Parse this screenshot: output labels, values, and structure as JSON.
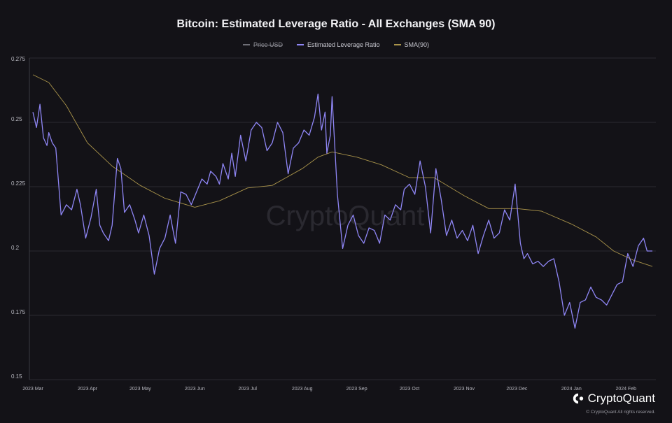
{
  "chart_data": {
    "type": "line",
    "title": "Bitcoin: Estimated Leverage Ratio - All Exchanges (SMA 90)",
    "legend": [
      {
        "name": "Price USD",
        "color": "#6e6e76",
        "hidden": true
      },
      {
        "name": "Estimated Leverage Ratio",
        "color": "#8f86f5"
      },
      {
        "name": "SMA(90)",
        "color": "#a9934a"
      }
    ],
    "legend_position": "top-center",
    "ylim": [
      0.15,
      0.275
    ],
    "y_ticks": [
      "0.275",
      "0.25",
      "0.225",
      "0.2",
      "0.175",
      "0.15"
    ],
    "x_ticks": [
      "2023 Mar",
      "2023 Apr",
      "2023 May",
      "2023 Jun",
      "2023 Jul",
      "2023 Aug",
      "2023 Sep",
      "2023 Oct",
      "2023 Nov",
      "2023 Dec",
      "2024 Jan",
      "2024 Feb"
    ],
    "grid": "horizontal",
    "series": [
      {
        "name": "Estimated Leverage Ratio",
        "color": "#8f86f5",
        "x": [
          "2023-03-01",
          "2023-03-03",
          "2023-03-05",
          "2023-03-07",
          "2023-03-09",
          "2023-03-10",
          "2023-03-12",
          "2023-03-14",
          "2023-03-17",
          "2023-03-20",
          "2023-03-23",
          "2023-03-26",
          "2023-03-28",
          "2023-03-31",
          "2023-04-03",
          "2023-04-06",
          "2023-04-08",
          "2023-04-10",
          "2023-04-13",
          "2023-04-15",
          "2023-04-18",
          "2023-04-20",
          "2023-04-22",
          "2023-04-25",
          "2023-04-28",
          "2023-04-30",
          "2023-05-03",
          "2023-05-06",
          "2023-05-09",
          "2023-05-12",
          "2023-05-15",
          "2023-05-18",
          "2023-05-21",
          "2023-05-24",
          "2023-05-27",
          "2023-05-30",
          "2023-06-02",
          "2023-06-05",
          "2023-06-08",
          "2023-06-10",
          "2023-06-13",
          "2023-06-15",
          "2023-06-17",
          "2023-06-20",
          "2023-06-22",
          "2023-06-24",
          "2023-06-27",
          "2023-06-30",
          "2023-07-03",
          "2023-07-06",
          "2023-07-09",
          "2023-07-12",
          "2023-07-15",
          "2023-07-18",
          "2023-07-21",
          "2023-07-24",
          "2023-07-27",
          "2023-07-30",
          "2023-08-02",
          "2023-08-05",
          "2023-08-08",
          "2023-08-10",
          "2023-08-12",
          "2023-08-14",
          "2023-08-15",
          "2023-08-17",
          "2023-08-18",
          "2023-08-21",
          "2023-08-24",
          "2023-08-27",
          "2023-08-30",
          "2023-09-02",
          "2023-09-05",
          "2023-09-08",
          "2023-09-11",
          "2023-09-14",
          "2023-09-17",
          "2023-09-20",
          "2023-09-23",
          "2023-09-26",
          "2023-09-28",
          "2023-10-01",
          "2023-10-04",
          "2023-10-07",
          "2023-10-10",
          "2023-10-13",
          "2023-10-16",
          "2023-10-19",
          "2023-10-22",
          "2023-10-25",
          "2023-10-28",
          "2023-10-31",
          "2023-11-03",
          "2023-11-06",
          "2023-11-09",
          "2023-11-12",
          "2023-11-15",
          "2023-11-18",
          "2023-11-21",
          "2023-11-24",
          "2023-11-27",
          "2023-11-30",
          "2023-12-03",
          "2023-12-05",
          "2023-12-07",
          "2023-12-10",
          "2023-12-13",
          "2023-12-16",
          "2023-12-19",
          "2023-12-22",
          "2023-12-25",
          "2023-12-28",
          "2023-12-31",
          "2024-01-03",
          "2024-01-06",
          "2024-01-09",
          "2024-01-12",
          "2024-01-15",
          "2024-01-18",
          "2024-01-21",
          "2024-01-24",
          "2024-01-27",
          "2024-01-30",
          "2024-02-02",
          "2024-02-05",
          "2024-02-08",
          "2024-02-11",
          "2024-02-13",
          "2024-02-15",
          "2024-02-16"
        ],
        "values": [
          0.254,
          0.248,
          0.257,
          0.244,
          0.241,
          0.246,
          0.242,
          0.24,
          0.214,
          0.218,
          0.216,
          0.224,
          0.218,
          0.205,
          0.213,
          0.224,
          0.21,
          0.207,
          0.204,
          0.21,
          0.236,
          0.232,
          0.215,
          0.218,
          0.212,
          0.207,
          0.214,
          0.206,
          0.191,
          0.201,
          0.205,
          0.214,
          0.203,
          0.223,
          0.222,
          0.218,
          0.223,
          0.228,
          0.226,
          0.231,
          0.229,
          0.226,
          0.234,
          0.228,
          0.238,
          0.229,
          0.245,
          0.235,
          0.247,
          0.25,
          0.248,
          0.239,
          0.242,
          0.25,
          0.246,
          0.23,
          0.24,
          0.242,
          0.247,
          0.245,
          0.252,
          0.261,
          0.247,
          0.254,
          0.238,
          0.245,
          0.26,
          0.222,
          0.201,
          0.21,
          0.214,
          0.206,
          0.203,
          0.209,
          0.208,
          0.203,
          0.214,
          0.212,
          0.218,
          0.216,
          0.224,
          0.226,
          0.222,
          0.235,
          0.225,
          0.207,
          0.232,
          0.22,
          0.206,
          0.212,
          0.205,
          0.208,
          0.204,
          0.21,
          0.199,
          0.206,
          0.212,
          0.205,
          0.207,
          0.216,
          0.212,
          0.226,
          0.203,
          0.197,
          0.199,
          0.195,
          0.196,
          0.194,
          0.196,
          0.197,
          0.188,
          0.175,
          0.18,
          0.17,
          0.18,
          0.181,
          0.186,
          0.182,
          0.181,
          0.179,
          0.183,
          0.187,
          0.188,
          0.199,
          0.194,
          0.202,
          0.205,
          0.2,
          0.2,
          0.2
        ],
        "note_unused": null
      },
      {
        "name": "SMA(90)",
        "color": "#a9934a",
        "x": [
          "2023-03-01",
          "2023-03-10",
          "2023-03-20",
          "2023-04-01",
          "2023-04-15",
          "2023-05-01",
          "2023-05-15",
          "2023-06-01",
          "2023-06-15",
          "2023-07-01",
          "2023-07-15",
          "2023-08-01",
          "2023-08-10",
          "2023-08-18",
          "2023-09-01",
          "2023-09-15",
          "2023-10-01",
          "2023-10-15",
          "2023-11-01",
          "2023-11-15",
          "2023-12-01",
          "2023-12-15",
          "2024-01-01",
          "2024-01-15",
          "2024-01-25",
          "2024-02-05",
          "2024-02-16"
        ],
        "values": [
          0.2685,
          0.2655,
          0.2565,
          0.242,
          0.233,
          0.2255,
          0.2205,
          0.217,
          0.2195,
          0.2245,
          0.2255,
          0.232,
          0.2365,
          0.2385,
          0.2365,
          0.2335,
          0.2285,
          0.2285,
          0.2215,
          0.2165,
          0.2165,
          0.2155,
          0.2105,
          0.2055,
          0.2,
          0.1965,
          0.194
        ]
      }
    ]
  },
  "watermark": "CryptoQuant",
  "brand": {
    "name": "CryptoQuant",
    "copyright": "© CryptoQuant All rights reserved."
  }
}
